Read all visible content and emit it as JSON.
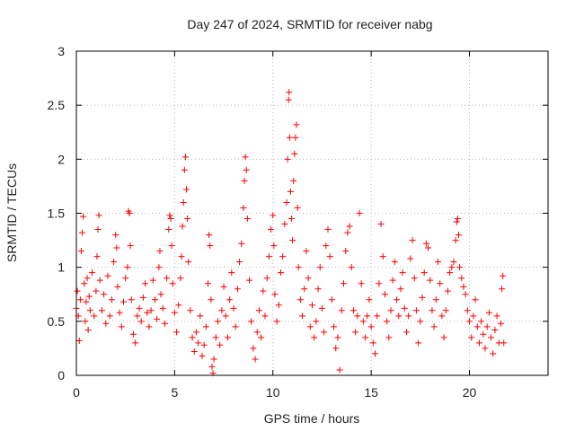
{
  "chart_data": {
    "type": "scatter",
    "title": "Day 247 of 2024, SRMTID for receiver nabg",
    "xlabel": "GPS time / hours",
    "ylabel": "SRMTID / TECUs",
    "xlim": [
      0,
      24
    ],
    "ylim": [
      0,
      3
    ],
    "x_ticks": [
      0,
      5,
      10,
      15,
      20
    ],
    "y_ticks": [
      0,
      0.5,
      1,
      1.5,
      2,
      2.5,
      3
    ],
    "x_tick_labels": [
      "0",
      "5",
      "10",
      "15",
      "20"
    ],
    "y_tick_labels": [
      "0",
      "0.5",
      "1",
      "1.5",
      "2",
      "2.5",
      "3"
    ],
    "grid": true,
    "marker": "+",
    "series": [
      {
        "name": "SRMTID",
        "color": "#ff0000",
        "points": [
          [
            0.0,
            0.62
          ],
          [
            0.05,
            0.78
          ],
          [
            0.1,
            0.55
          ],
          [
            0.15,
            0.32
          ],
          [
            0.2,
            0.7
          ],
          [
            0.25,
            1.15
          ],
          [
            0.3,
            1.32
          ],
          [
            0.35,
            1.47
          ],
          [
            0.4,
            0.85
          ],
          [
            0.45,
            0.5
          ],
          [
            0.5,
            0.68
          ],
          [
            0.55,
            0.9
          ],
          [
            0.6,
            0.42
          ],
          [
            0.65,
            0.73
          ],
          [
            0.7,
            0.6
          ],
          [
            0.8,
            0.95
          ],
          [
            0.9,
            0.55
          ],
          [
            1.0,
            0.78
          ],
          [
            1.05,
            1.1
          ],
          [
            1.1,
            1.35
          ],
          [
            1.15,
            1.48
          ],
          [
            1.2,
            0.88
          ],
          [
            1.3,
            0.6
          ],
          [
            1.4,
            0.75
          ],
          [
            1.5,
            0.48
          ],
          [
            1.6,
            0.92
          ],
          [
            1.7,
            0.55
          ],
          [
            1.8,
            0.7
          ],
          [
            1.9,
            1.05
          ],
          [
            2.0,
            1.3
          ],
          [
            2.05,
            1.18
          ],
          [
            2.1,
            0.82
          ],
          [
            2.2,
            0.58
          ],
          [
            2.3,
            0.45
          ],
          [
            2.4,
            0.68
          ],
          [
            2.5,
            0.9
          ],
          [
            2.6,
            1.0
          ],
          [
            2.65,
            1.52
          ],
          [
            2.7,
            1.5
          ],
          [
            2.75,
            1.2
          ],
          [
            2.8,
            0.7
          ],
          [
            2.9,
            0.38
          ],
          [
            3.0,
            0.3
          ],
          [
            3.1,
            0.55
          ],
          [
            3.2,
            0.62
          ],
          [
            3.3,
            0.5
          ],
          [
            3.4,
            0.72
          ],
          [
            3.5,
            0.85
          ],
          [
            3.6,
            0.58
          ],
          [
            3.7,
            0.45
          ],
          [
            3.8,
            0.6
          ],
          [
            3.9,
            0.88
          ],
          [
            4.0,
            0.7
          ],
          [
            4.1,
            0.52
          ],
          [
            4.2,
            1.0
          ],
          [
            4.25,
            1.15
          ],
          [
            4.3,
            0.75
          ],
          [
            4.4,
            0.62
          ],
          [
            4.5,
            0.48
          ],
          [
            4.6,
            0.9
          ],
          [
            4.7,
            1.35
          ],
          [
            4.75,
            1.48
          ],
          [
            4.8,
            1.45
          ],
          [
            4.85,
            1.2
          ],
          [
            4.9,
            0.85
          ],
          [
            5.0,
            0.58
          ],
          [
            5.1,
            0.4
          ],
          [
            5.2,
            0.65
          ],
          [
            5.3,
            0.9
          ],
          [
            5.35,
            1.1
          ],
          [
            5.4,
            1.38
          ],
          [
            5.45,
            1.6
          ],
          [
            5.5,
            1.9
          ],
          [
            5.55,
            2.02
          ],
          [
            5.6,
            1.72
          ],
          [
            5.65,
            1.45
          ],
          [
            5.7,
            1.05
          ],
          [
            5.8,
            0.6
          ],
          [
            5.9,
            0.35
          ],
          [
            6.0,
            0.22
          ],
          [
            6.1,
            0.4
          ],
          [
            6.2,
            0.3
          ],
          [
            6.3,
            0.55
          ],
          [
            6.4,
            0.18
          ],
          [
            6.5,
            0.28
          ],
          [
            6.6,
            0.45
          ],
          [
            6.7,
            0.85
          ],
          [
            6.75,
            1.3
          ],
          [
            6.8,
            1.2
          ],
          [
            6.85,
            0.7
          ],
          [
            6.9,
            0.08
          ],
          [
            6.95,
            0.02
          ],
          [
            7.0,
            0.15
          ],
          [
            7.1,
            0.35
          ],
          [
            7.2,
            0.5
          ],
          [
            7.3,
            0.28
          ],
          [
            7.4,
            0.6
          ],
          [
            7.5,
            0.82
          ],
          [
            7.6,
            0.55
          ],
          [
            7.7,
            0.35
          ],
          [
            7.8,
            0.7
          ],
          [
            7.9,
            0.95
          ],
          [
            8.0,
            0.62
          ],
          [
            8.1,
            0.45
          ],
          [
            8.2,
            0.8
          ],
          [
            8.3,
            1.05
          ],
          [
            8.4,
            1.22
          ],
          [
            8.5,
            1.55
          ],
          [
            8.55,
            1.8
          ],
          [
            8.6,
            2.02
          ],
          [
            8.65,
            1.9
          ],
          [
            8.7,
            1.45
          ],
          [
            8.8,
            0.88
          ],
          [
            8.9,
            0.5
          ],
          [
            9.0,
            0.25
          ],
          [
            9.1,
            0.15
          ],
          [
            9.2,
            0.4
          ],
          [
            9.3,
            0.6
          ],
          [
            9.4,
            0.35
          ],
          [
            9.5,
            0.78
          ],
          [
            9.6,
            0.55
          ],
          [
            9.7,
            0.9
          ],
          [
            9.8,
            1.1
          ],
          [
            9.9,
            1.35
          ],
          [
            10.0,
            1.48
          ],
          [
            10.05,
            1.2
          ],
          [
            10.1,
            0.75
          ],
          [
            10.2,
            0.5
          ],
          [
            10.3,
            0.65
          ],
          [
            10.4,
            0.95
          ],
          [
            10.5,
            1.1
          ],
          [
            10.6,
            1.4
          ],
          [
            10.7,
            1.6
          ],
          [
            10.75,
            2.0
          ],
          [
            10.8,
            2.55
          ],
          [
            10.82,
            2.62
          ],
          [
            10.85,
            2.2
          ],
          [
            10.9,
            1.7
          ],
          [
            10.95,
            1.45
          ],
          [
            11.0,
            1.25
          ],
          [
            11.05,
            1.8
          ],
          [
            11.1,
            2.05
          ],
          [
            11.15,
            2.2
          ],
          [
            11.2,
            2.32
          ],
          [
            11.25,
            1.55
          ],
          [
            11.3,
            1.0
          ],
          [
            11.4,
            0.7
          ],
          [
            11.5,
            0.55
          ],
          [
            11.6,
            0.8
          ],
          [
            11.7,
            1.15
          ],
          [
            11.8,
            0.9
          ],
          [
            11.9,
            0.45
          ],
          [
            12.0,
            0.65
          ],
          [
            12.1,
            0.35
          ],
          [
            12.2,
            0.5
          ],
          [
            12.3,
            0.8
          ],
          [
            12.4,
            1.0
          ],
          [
            12.5,
            0.62
          ],
          [
            12.6,
            0.4
          ],
          [
            12.7,
            1.2
          ],
          [
            12.8,
            1.35
          ],
          [
            12.9,
            1.1
          ],
          [
            13.0,
            0.7
          ],
          [
            13.1,
            0.45
          ],
          [
            13.2,
            0.25
          ],
          [
            13.3,
            0.35
          ],
          [
            13.4,
            0.05
          ],
          [
            13.5,
            0.6
          ],
          [
            13.6,
            0.85
          ],
          [
            13.7,
            1.15
          ],
          [
            13.8,
            1.32
          ],
          [
            13.9,
            1.38
          ],
          [
            14.0,
            1.0
          ],
          [
            14.1,
            0.6
          ],
          [
            14.2,
            0.4
          ],
          [
            14.3,
            0.55
          ],
          [
            14.4,
            1.5
          ],
          [
            14.5,
            0.85
          ],
          [
            14.6,
            0.5
          ],
          [
            14.7,
            0.35
          ],
          [
            14.8,
            0.55
          ],
          [
            14.9,
            0.7
          ],
          [
            15.0,
            0.45
          ],
          [
            15.1,
            0.3
          ],
          [
            15.2,
            0.2
          ],
          [
            15.3,
            0.55
          ],
          [
            15.4,
            0.85
          ],
          [
            15.5,
            1.4
          ],
          [
            15.6,
            1.1
          ],
          [
            15.7,
            0.75
          ],
          [
            15.8,
            0.5
          ],
          [
            15.9,
            0.35
          ],
          [
            16.0,
            0.6
          ],
          [
            16.1,
            0.88
          ],
          [
            16.2,
            1.05
          ],
          [
            16.3,
            0.7
          ],
          [
            16.4,
            0.55
          ],
          [
            16.5,
            0.8
          ],
          [
            16.6,
            0.95
          ],
          [
            16.7,
            0.62
          ],
          [
            16.8,
            0.4
          ],
          [
            16.9,
            0.55
          ],
          [
            17.0,
            1.08
          ],
          [
            17.1,
            1.25
          ],
          [
            17.2,
            0.9
          ],
          [
            17.3,
            0.6
          ],
          [
            17.4,
            0.3
          ],
          [
            17.5,
            0.5
          ],
          [
            17.6,
            0.72
          ],
          [
            17.7,
            0.95
          ],
          [
            17.8,
            1.22
          ],
          [
            17.9,
            1.18
          ],
          [
            18.0,
            0.88
          ],
          [
            18.1,
            0.6
          ],
          [
            18.2,
            0.45
          ],
          [
            18.3,
            0.7
          ],
          [
            18.4,
            1.05
          ],
          [
            18.5,
            0.85
          ],
          [
            18.6,
            0.55
          ],
          [
            18.7,
            0.35
          ],
          [
            18.8,
            0.6
          ],
          [
            18.9,
            0.78
          ],
          [
            19.0,
            0.95
          ],
          [
            19.1,
            1.0
          ],
          [
            19.2,
            1.05
          ],
          [
            19.3,
            1.25
          ],
          [
            19.35,
            1.42
          ],
          [
            19.4,
            1.45
          ],
          [
            19.45,
            1.3
          ],
          [
            19.5,
            1.0
          ],
          [
            19.6,
            0.9
          ],
          [
            19.7,
            0.82
          ],
          [
            19.8,
            0.75
          ],
          [
            19.9,
            0.6
          ],
          [
            20.0,
            0.5
          ],
          [
            20.1,
            0.35
          ],
          [
            20.2,
            0.55
          ],
          [
            20.3,
            0.7
          ],
          [
            20.4,
            0.45
          ],
          [
            20.5,
            0.3
          ],
          [
            20.6,
            0.5
          ],
          [
            20.7,
            0.38
          ],
          [
            20.8,
            0.25
          ],
          [
            20.9,
            0.45
          ],
          [
            21.0,
            0.58
          ],
          [
            21.1,
            0.35
          ],
          [
            21.2,
            0.2
          ],
          [
            21.3,
            0.42
          ],
          [
            21.4,
            0.55
          ],
          [
            21.5,
            0.3
          ],
          [
            21.6,
            0.48
          ],
          [
            21.65,
            0.8
          ],
          [
            21.7,
            0.92
          ],
          [
            21.75,
            0.3
          ]
        ]
      }
    ]
  }
}
